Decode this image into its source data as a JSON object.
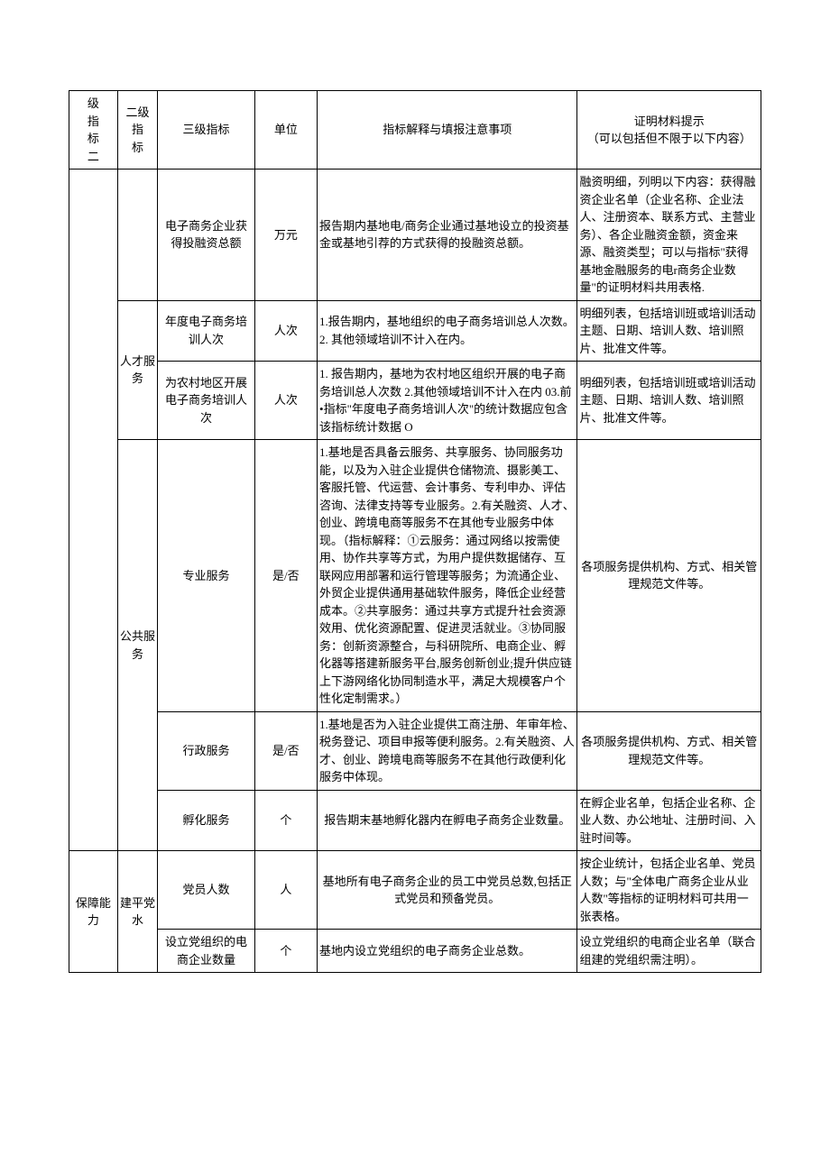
{
  "headers": {
    "c1": "级\n指\n标\n二",
    "c2": "二级\n指\n标",
    "c3": "三级指标",
    "c4": "单位",
    "c5": "指标解释与填报注意事项",
    "c6": "证明材料提示\n（可以包括但不限于以下内容）"
  },
  "rows": [
    {
      "lvl1": "",
      "lvl2_a": "",
      "lvl2_b": "人才服务",
      "lvl2_c": "公共服务",
      "r1": {
        "name": "电子商务企业获得投融资总额",
        "unit": "万元",
        "desc": "报告期内基地电/商务企业通过基地设立的投资基金或基地引荐的方式获得的投融资总额。",
        "evidence": "融资明细，列明以下内容：获得融资企业名单（企业名称、企业法人、注册资本、联系方式、主营业务）、各企业融资金额，资金来源、融资类型；可以与指标\"获得基地金融服务的电r商务企业数量\"的证明材料共用表格."
      },
      "r2": {
        "name": "年度电子商务培训人次",
        "unit": "人次",
        "desc": "1.报告期内，基地组织的电子商务培训总人次数。2. 其他领域培训不计入在内。",
        "evidence": "明细列表，包括培训班或培训活动主题、日期、培训人数、培训照片、批准文件等。"
      },
      "r3": {
        "name": "为农村地区开展电子商务培训人次",
        "unit": "人次",
        "desc": "1. 报告期内，基地为农村地区组织开展的电子商务培训总人次数 2.其他领域培训不计入在内 03.前•指标\"年度电子商务培训人次\"的统计数据应包含该指标统计数据 O",
        "evidence": "明细列表，包括培训班或培训活动主题、日期、培训人数、培训照片、批准文件等。"
      },
      "r4": {
        "name": "专业服务",
        "unit": "是/否",
        "desc": "1.基地是否具备云服务、共享服务、协同服务功能，以及为入驻企业提供仓储物流、摄影美工、客服托管、代运营、会计事务、专利申办、评估咨询、法律支持等专业服务。2.有关融资、人才、创业、跨境电商等服务不在其他专业服务中体现。（指标解释：①云服务：通过网络以按需使用、协作共享等方式，为用户提供数据储存、互联网应用部署和运行管理等服务；为流通企业、外贸企业提供通用基础软件服务，降低企业经营成本。②共享服务：通过共享方式提升社会资源效用、优化资源配置、促进灵活就业。③协同服务：创新资源整合，与科研院所、电商企业、孵化器等搭建新服务平台,服务创新创业;提升供应链上下游网络化协同制造水平，满足大规模客户个性化定制需求。）",
        "evidence": "各项服务提供机构、方式、相关管理规范文件等。"
      },
      "r5": {
        "name": "行政服务",
        "unit": "是/否",
        "desc": "1.基地是否为入驻企业提供工商注册、年审年检、税务登记、项目申报等便利服务。2.有关融资、人才、创业、跨境电商等服务不在其他行政便利化服务中体现。",
        "evidence": "各项服务提供机构、方式、相关管理规范文件等。"
      },
      "r6": {
        "name": "孵化服务",
        "unit": "个",
        "desc": "报告期末基地孵化器内在孵电子商务企业数量。",
        "evidence": "在孵企业名单，包括企业名称、企业人数、办公地址、注册时间、入驻时间等。"
      }
    },
    {
      "lvl1": "保障能力",
      "lvl2": "建平党水",
      "r7": {
        "name": "党员人数",
        "unit": "人",
        "desc": "基地所有电子商务企业的员工中党员总数,包括正式党员和预备党员。",
        "evidence": "按企业统计，包括企业名单、党员人数；与\"全体电广商务企业从业人数\"等指标的证明材料可共用一张表格。"
      },
      "r8": {
        "name": "设立党组织的电商企业数量",
        "unit": "个",
        "desc": "基地内设立党组织的电子商务企业总数。",
        "evidence": "设立党组织的电商企业名单（联合组建的党组织需注明）。"
      }
    }
  ]
}
